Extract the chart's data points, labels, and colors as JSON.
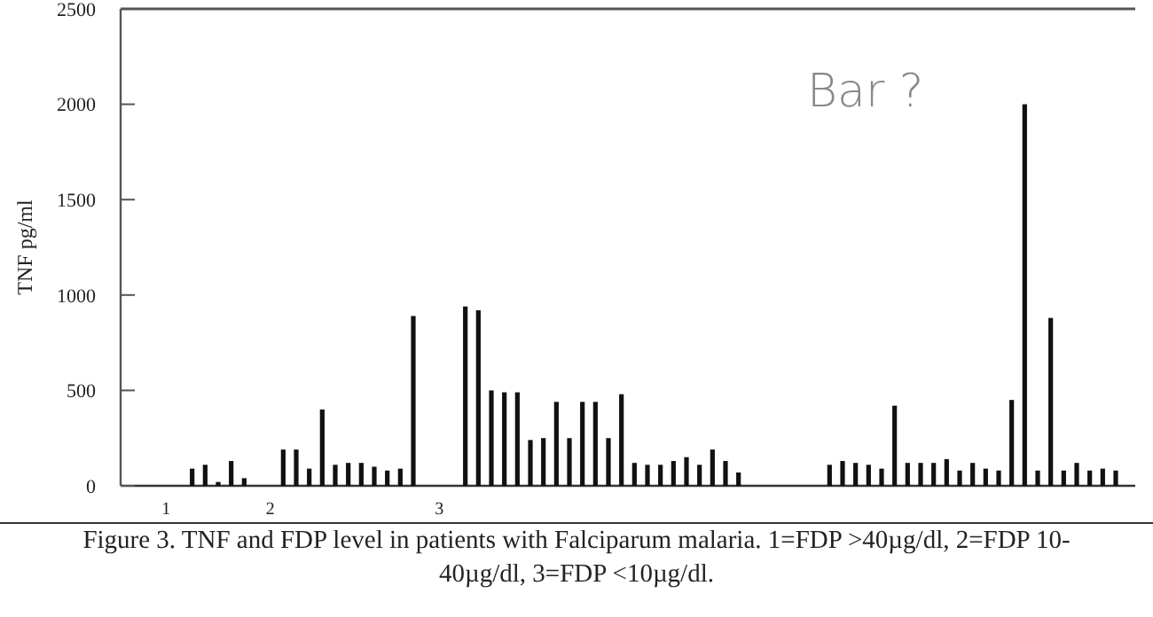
{
  "chart_data": {
    "type": "bar",
    "title": "Figure 3. TNF and FDP level in patients with Falciparum malaria. 1=FDP >40µg/dl, 2=FDP 10-40µg/dl, 3=FDP <10µg/dl.",
    "ylabel": "TNF pg/ml",
    "categories": [
      null,
      null,
      null,
      "1",
      null,
      null,
      null,
      null,
      null,
      null,
      null,
      "2",
      null,
      null,
      null,
      null,
      null,
      null,
      null,
      null,
      null,
      null,
      null,
      null,
      "3",
      null,
      null,
      null,
      null,
      null,
      null,
      null,
      null,
      null,
      null,
      null,
      null,
      null,
      null,
      null,
      null,
      null,
      null,
      null,
      null,
      null,
      null,
      null,
      null,
      null,
      null,
      null,
      null,
      null,
      null,
      null,
      null,
      null,
      null,
      null,
      null,
      null,
      null,
      null,
      null,
      null,
      null,
      null,
      null,
      null,
      null,
      null,
      null,
      null,
      null,
      null,
      null,
      null
    ],
    "values": [
      null,
      null,
      null,
      null,
      null,
      90,
      110,
      20,
      130,
      40,
      null,
      null,
      190,
      190,
      90,
      400,
      110,
      120,
      120,
      100,
      80,
      90,
      890,
      null,
      null,
      null,
      940,
      920,
      500,
      490,
      490,
      240,
      250,
      440,
      250,
      440,
      440,
      250,
      480,
      120,
      110,
      110,
      130,
      150,
      110,
      190,
      130,
      70,
      null,
      null,
      null,
      null,
      null,
      null,
      110,
      130,
      120,
      110,
      90,
      420,
      120,
      120,
      120,
      140,
      80,
      120,
      90,
      80,
      450,
      2000,
      80,
      880,
      80,
      120,
      80,
      90,
      80,
      null
    ],
    "color": "#111111",
    "ylim": [
      0,
      2500
    ],
    "yticks": [
      0,
      500,
      1000,
      1500,
      2000,
      2500
    ],
    "grid": false,
    "annotations": [
      "Bar ?"
    ]
  }
}
